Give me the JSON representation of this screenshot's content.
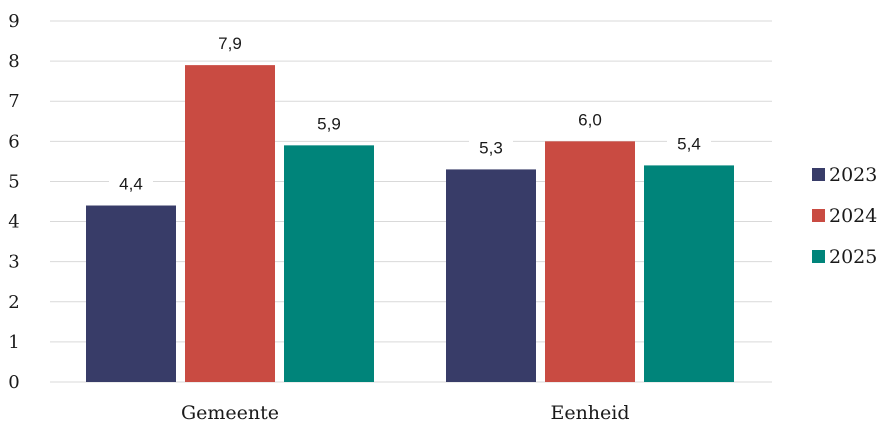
{
  "chart_data": {
    "type": "bar",
    "categories": [
      "Gemeente",
      "Eenheid"
    ],
    "series": [
      {
        "name": "2023",
        "values": [
          4.4,
          5.3
        ],
        "labels": [
          "4,4",
          "5,3"
        ],
        "color": "#383c68"
      },
      {
        "name": "2024",
        "values": [
          7.9,
          6.0
        ],
        "labels": [
          "7,9",
          "6,0"
        ],
        "color": "#c94b42"
      },
      {
        "name": "2025",
        "values": [
          5.9,
          5.4
        ],
        "labels": [
          "5,9",
          "5,4"
        ],
        "color": "#00847a"
      }
    ],
    "title": "",
    "xlabel": "",
    "ylabel": "",
    "ylim": [
      0,
      9
    ],
    "yticks": [
      "0",
      "1",
      "2",
      "3",
      "4",
      "5",
      "6",
      "7",
      "8",
      "9"
    ],
    "grid": true,
    "legend": "right"
  }
}
